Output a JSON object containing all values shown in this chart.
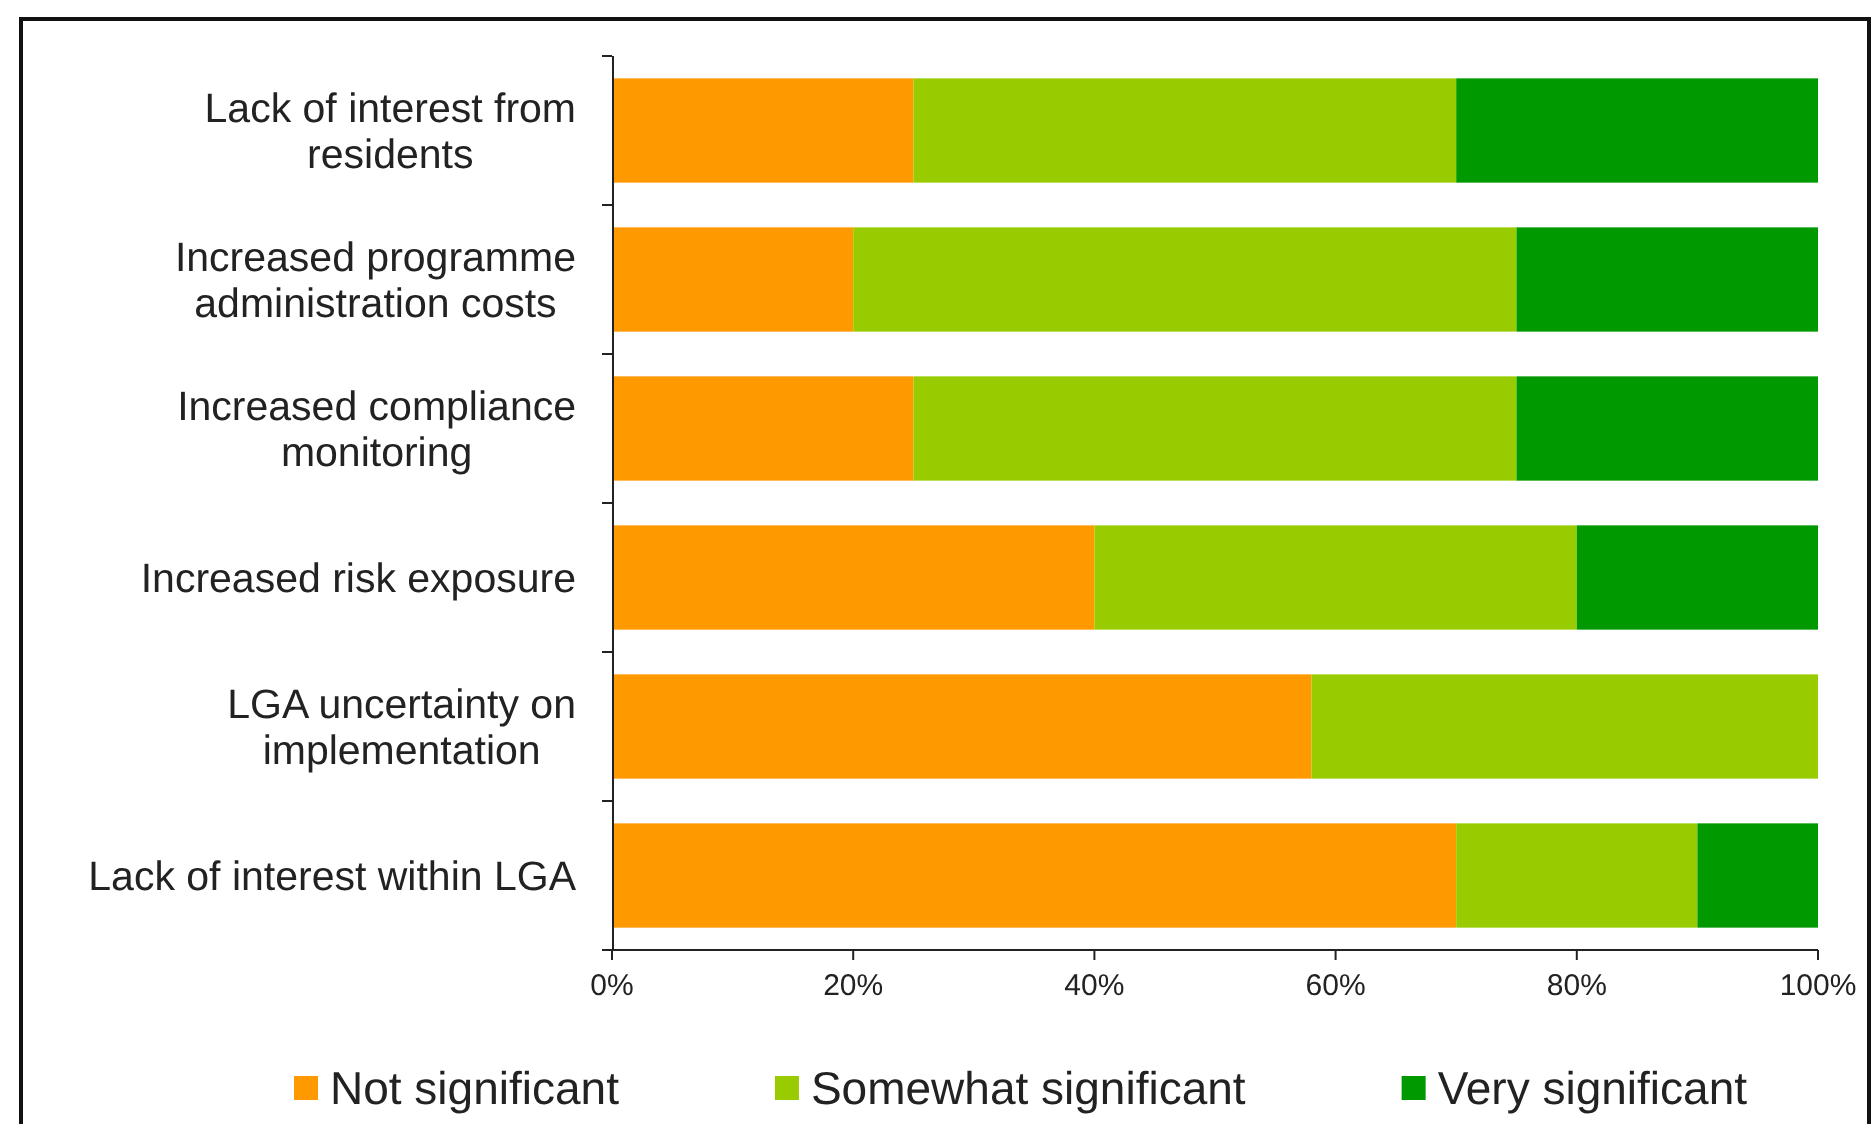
{
  "chart_data": {
    "type": "bar",
    "orientation": "horizontal",
    "stacked": true,
    "categories": [
      "Lack of interest from residents",
      "Increased programme administration costs",
      "Increased compliance monitoring",
      "Increased risk exposure",
      "LGA uncertainty on implementation",
      "Lack of interest within LGA"
    ],
    "series": [
      {
        "name": "Not significant",
        "color": "#ff9900",
        "values": [
          25,
          20,
          25,
          40,
          58,
          70
        ]
      },
      {
        "name": "Somewhat significant",
        "color": "#99cc00",
        "values": [
          45,
          55,
          50,
          40,
          42,
          20
        ]
      },
      {
        "name": "Very significant",
        "color": "#009900",
        "values": [
          30,
          25,
          25,
          20,
          null,
          10
        ]
      }
    ],
    "xlim": [
      0,
      100
    ],
    "xticks": [
      {
        "value": 0,
        "label": "0%"
      },
      {
        "value": 20,
        "label": "20%"
      },
      {
        "value": 40,
        "label": "40%"
      },
      {
        "value": 60,
        "label": "60%"
      },
      {
        "value": 80,
        "label": "80%"
      },
      {
        "value": 100,
        "label": "100%"
      }
    ],
    "legend": "bottom"
  }
}
